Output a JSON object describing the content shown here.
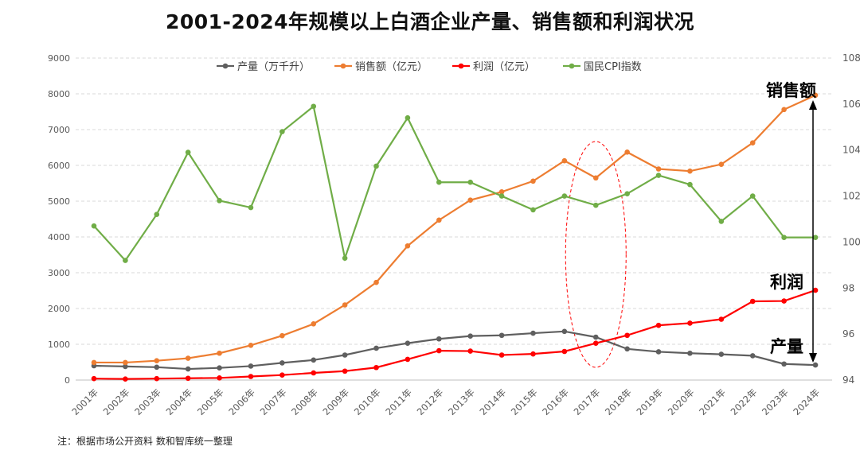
{
  "title": "2001-2024年规模以上白酒企业产量、销售额和利润状况",
  "note": "注：根据市场公开资料  数和智库统一整理",
  "chart_data": {
    "type": "line",
    "categories": [
      "2001年",
      "2002年",
      "2003年",
      "2004年",
      "2005年",
      "2006年",
      "2007年",
      "2008年",
      "2009年",
      "2010年",
      "2011年",
      "2012年",
      "2013年",
      "2014年",
      "2015年",
      "2016年",
      "2017年",
      "2018年",
      "2019年",
      "2020年",
      "2021年",
      "2022年",
      "2023年",
      "2024年"
    ],
    "y_left": {
      "ylim": [
        0,
        9000
      ],
      "ticks": [
        "0",
        "1000",
        "2000",
        "3000",
        "4000",
        "5000",
        "6000",
        "7000",
        "8000",
        "9000"
      ]
    },
    "y_right": {
      "ylim": [
        94,
        108
      ],
      "ticks": [
        "94",
        "96",
        "98",
        "100",
        "102",
        "104",
        "106",
        "108"
      ]
    },
    "grid": true,
    "legend_position": "top",
    "series": [
      {
        "name": "产量（万千升）",
        "axis": "left",
        "color": "#5f5f5f",
        "values": [
          400,
          380,
          360,
          310,
          340,
          390,
          480,
          560,
          700,
          890,
          1030,
          1150,
          1230,
          1250,
          1310,
          1360,
          1200,
          870,
          790,
          750,
          720,
          680,
          450,
          420
        ]
      },
      {
        "name": "销售额（亿元）",
        "axis": "left",
        "color": "#ed7d31",
        "values": [
          490,
          490,
          540,
          610,
          750,
          970,
          1240,
          1570,
          2100,
          2730,
          3750,
          4470,
          5030,
          5260,
          5560,
          6130,
          5650,
          6370,
          5900,
          5840,
          6030,
          6630,
          7560,
          7960
        ]
      },
      {
        "name": "利润（亿元）",
        "axis": "left",
        "color": "#ff0000",
        "values": [
          40,
          30,
          40,
          50,
          60,
          100,
          140,
          200,
          250,
          350,
          580,
          820,
          810,
          700,
          730,
          800,
          1030,
          1250,
          1530,
          1590,
          1700,
          2200,
          2210,
          2510
        ]
      },
      {
        "name": "国民CPI指数",
        "axis": "right",
        "color": "#70ad47",
        "values": [
          100.7,
          99.2,
          101.2,
          103.9,
          101.8,
          101.5,
          104.8,
          105.9,
          99.3,
          103.3,
          105.4,
          102.6,
          102.6,
          102.0,
          101.4,
          102.0,
          101.6,
          102.1,
          102.9,
          102.5,
          100.9,
          102.0,
          100.2,
          100.2
        ]
      }
    ],
    "annotations": {
      "sales_label": "销售额",
      "profit_label": "利润",
      "output_label": "产量"
    }
  }
}
